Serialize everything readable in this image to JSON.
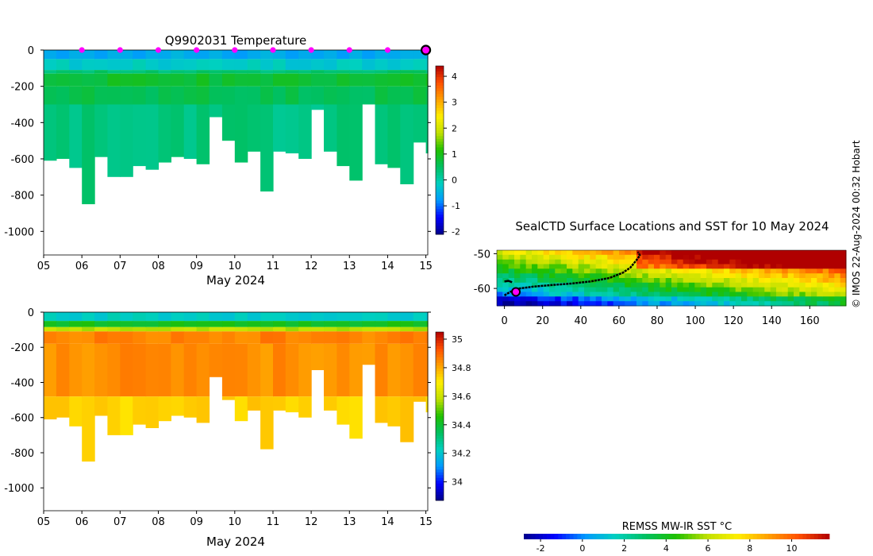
{
  "figure": {
    "credit": "© IMOS 22-Aug-2024 00:32 Hobart"
  },
  "colors": {
    "line": "#000000",
    "marker": "#ff00ff",
    "missing": "#ffffff"
  },
  "chart_data": [
    {
      "id": "temperature",
      "type": "heatmap",
      "title": "Q9902031  Temperature",
      "xlabel": "May 2024",
      "ylabel": "",
      "x_ticks": [
        "05",
        "06",
        "07",
        "08",
        "09",
        "10",
        "11",
        "12",
        "13",
        "14",
        "15"
      ],
      "xlim": [
        5,
        15.05
      ],
      "y_ticks": [
        0,
        -200,
        -400,
        -600,
        -800,
        -1000
      ],
      "ylim": [
        -1130,
        0
      ],
      "profile_days": [
        5.0,
        5.33,
        5.67,
        6.0,
        6.33,
        6.67,
        7.0,
        7.33,
        7.67,
        8.0,
        8.33,
        8.67,
        9.0,
        9.33,
        9.67,
        10.0,
        10.33,
        10.67,
        11.0,
        11.33,
        11.67,
        12.0,
        12.33,
        12.67,
        13.0,
        13.33,
        13.67,
        14.0,
        14.33,
        14.67,
        15.0
      ],
      "profile_max_depth": [
        -610,
        -600,
        -650,
        -850,
        -590,
        -700,
        -700,
        -640,
        -660,
        -620,
        -590,
        -600,
        -630,
        -370,
        -500,
        -620,
        -560,
        -780,
        -560,
        -570,
        -600,
        -330,
        -560,
        -640,
        -720,
        -300,
        -630,
        -650,
        -740,
        -510,
        -570
      ],
      "layers": {
        "top_depth": [
          0,
          -50,
          -110,
          -130,
          -200,
          -300
        ],
        "values": [
          -0.6,
          -0.2,
          0.4,
          0.8,
          0.6,
          0.3
        ]
      },
      "surface_markers_days": [
        6,
        7,
        8,
        9,
        10,
        11,
        12,
        13,
        14
      ],
      "current_marker_day": 15,
      "colorbar": {
        "label": "",
        "range": [
          -2.1,
          4.4
        ],
        "ticks": [
          4,
          3,
          2,
          1,
          0,
          -1,
          -2
        ],
        "colormap": [
          "#00008b",
          "#0000ff",
          "#0099ff",
          "#00d0c0",
          "#00c060",
          "#20c000",
          "#c0e000",
          "#ffee00",
          "#ffa000",
          "#ff5000",
          "#b00000"
        ]
      }
    },
    {
      "id": "salinity",
      "type": "heatmap",
      "title": "",
      "xlabel": "May 2024",
      "ylabel": "",
      "x_ticks": [
        "05",
        "06",
        "07",
        "08",
        "09",
        "10",
        "11",
        "12",
        "13",
        "14",
        "15"
      ],
      "xlim": [
        5,
        15.05
      ],
      "y_ticks": [
        0,
        -200,
        -400,
        -600,
        -800,
        -1000
      ],
      "ylim": [
        -1130,
        0
      ],
      "profile_days": [
        5.0,
        5.33,
        5.67,
        6.0,
        6.33,
        6.67,
        7.0,
        7.33,
        7.67,
        8.0,
        8.33,
        8.67,
        9.0,
        9.33,
        9.67,
        10.0,
        10.33,
        10.67,
        11.0,
        11.33,
        11.67,
        12.0,
        12.33,
        12.67,
        13.0,
        13.33,
        13.67,
        14.0,
        14.33,
        14.67,
        15.0
      ],
      "profile_max_depth": [
        -610,
        -600,
        -650,
        -850,
        -590,
        -700,
        -700,
        -640,
        -660,
        -620,
        -590,
        -600,
        -630,
        -370,
        -500,
        -620,
        -560,
        -780,
        -560,
        -570,
        -600,
        -330,
        -560,
        -640,
        -720,
        -300,
        -630,
        -650,
        -740,
        -510,
        -570
      ],
      "layers": {
        "top_depth": [
          0,
          -50,
          -85,
          -110,
          -180,
          -480
        ],
        "values": [
          34.22,
          34.42,
          34.58,
          34.86,
          34.84,
          34.74
        ]
      },
      "colorbar": {
        "label": "",
        "range": [
          33.87,
          35.05
        ],
        "ticks": [
          35,
          34.8,
          34.6,
          34.4,
          34.2,
          34
        ],
        "colormap": [
          "#00008b",
          "#0000ff",
          "#0099ff",
          "#00d0c0",
          "#00c060",
          "#20c000",
          "#c0e000",
          "#ffee00",
          "#ffa000",
          "#ff5000",
          "#b00000"
        ]
      }
    },
    {
      "id": "sst_map",
      "type": "heatmap",
      "title": "SealCTD Surface Locations and SST for 10 May 2024",
      "xlabel": "",
      "ylabel": "",
      "x_ticks": [
        0,
        20,
        40,
        60,
        80,
        100,
        120,
        140,
        160
      ],
      "xlim": [
        -4,
        179
      ],
      "y_ticks": [
        -50,
        -60
      ],
      "ylim": [
        -65,
        -49
      ],
      "track": {
        "lon": [
          0,
          3,
          8,
          15,
          25,
          35,
          45,
          55,
          62,
          66,
          69,
          71,
          70
        ],
        "lat": [
          -62,
          -61,
          -60,
          -59.5,
          -59,
          -58.6,
          -58,
          -57,
          -55.5,
          -54,
          -52,
          -50.5,
          -49.5
        ],
        "lon2": [
          0,
          2,
          4
        ],
        "lat2": [
          -58,
          -57.8,
          -58.2
        ]
      },
      "current_position": {
        "lon": 6,
        "lat": -61
      },
      "colorbar": {
        "label": "REMSS MW-IR SST °C",
        "range": [
          -2.8,
          11.8
        ],
        "ticks": [
          -2,
          0,
          2,
          4,
          6,
          8,
          10
        ],
        "colormap": [
          "#00008b",
          "#0000ff",
          "#0099ff",
          "#00d0c0",
          "#00c060",
          "#20c000",
          "#c0e000",
          "#ffee00",
          "#ffa000",
          "#ff5000",
          "#b00000"
        ]
      }
    }
  ]
}
